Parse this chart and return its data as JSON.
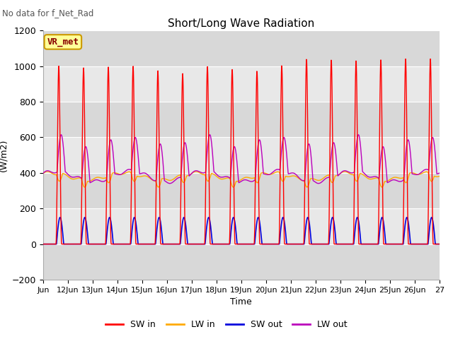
{
  "title": "Short/Long Wave Radiation",
  "subtitle": "No data for f_Net_Rad",
  "xlabel": "Time",
  "ylabel": "(W/m2)",
  "ylim": [
    -200,
    1200
  ],
  "yticks": [
    -200,
    0,
    200,
    400,
    600,
    800,
    1000,
    1200
  ],
  "n_days": 16,
  "dt_hours": 0.25,
  "legend_labels": [
    "SW in",
    "LW in",
    "SW out",
    "LW out"
  ],
  "legend_colors": [
    "#ff0000",
    "#ffaa00",
    "#0000dd",
    "#bb00bb"
  ],
  "annotation_text": "VR_met",
  "annotation_box_color": "#ffff99",
  "annotation_text_color": "#880000",
  "background_color": "#ffffff",
  "plot_bg_color": "#e8e8e8",
  "grid_color": "#ffffff",
  "tick_labels": [
    "Jun",
    "12Jun",
    "13Jun",
    "14Jun",
    "15Jun",
    "16Jun",
    "17Jun",
    "18Jun",
    "19Jun",
    "20Jun",
    "21Jun",
    "22Jun",
    "23Jun",
    "24Jun",
    "25Jun",
    "26Jun",
    "27"
  ]
}
